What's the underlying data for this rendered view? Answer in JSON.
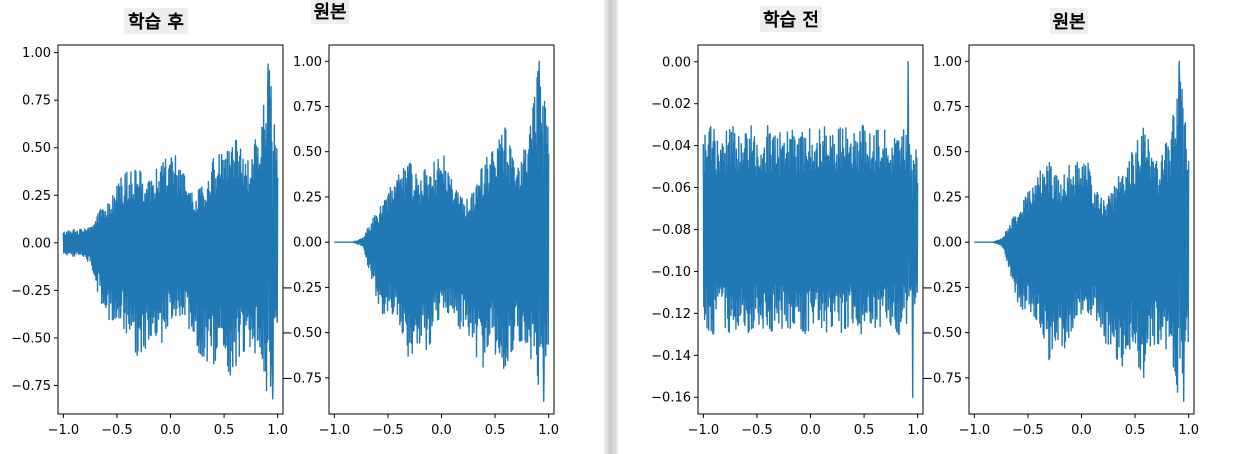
{
  "colors": {
    "line": "#1f77b4",
    "axis": "#000000",
    "background": "#ffffff"
  },
  "chart_data": [
    {
      "type": "line",
      "title": "학습 후",
      "xlabel": "",
      "ylabel": "",
      "xlim": [
        -1.05,
        1.05
      ],
      "ylim": [
        -0.9,
        1.04
      ],
      "xticks": [
        -1.0,
        -0.5,
        0.0,
        0.5,
        1.0
      ],
      "xtick_labels": [
        "−1.0",
        "−0.5",
        "0.0",
        "0.5",
        "1.0"
      ],
      "yticks": [
        1.0,
        0.75,
        0.5,
        0.25,
        0.0,
        -0.25,
        -0.5,
        -0.75
      ],
      "ytick_labels": [
        "1.00",
        "0.75",
        "0.50",
        "0.25",
        "0.00",
        "−0.25",
        "−0.50",
        "−0.75"
      ],
      "grid": false,
      "series": [
        {
          "x_range": [
            -1.0,
            1.0
          ],
          "envelope_upper": [
            0.06,
            0.07,
            0.07,
            0.08,
            0.18,
            0.22,
            0.33,
            0.38,
            0.4,
            0.3,
            0.42,
            0.44,
            0.48,
            0.35,
            0.25,
            0.3,
            0.44,
            0.48,
            0.62,
            0.5,
            0.45,
            0.6,
            0.95,
            0.55
          ],
          "envelope_lower": [
            -0.06,
            -0.07,
            -0.07,
            -0.12,
            -0.32,
            -0.42,
            -0.4,
            -0.5,
            -0.6,
            -0.55,
            -0.62,
            -0.45,
            -0.38,
            -0.42,
            -0.55,
            -0.6,
            -0.65,
            -0.55,
            -0.72,
            -0.58,
            -0.55,
            -0.6,
            -0.82,
            -0.55
          ],
          "peak_max": 0.94,
          "peak_min": -0.82
        }
      ]
    },
    {
      "type": "line",
      "title": "원본",
      "xlabel": "",
      "ylabel": "",
      "xlim": [
        -1.05,
        1.05
      ],
      "ylim": [
        -0.95,
        1.09
      ],
      "xticks": [
        -1.0,
        -0.5,
        0.0,
        0.5,
        1.0
      ],
      "xtick_labels": [
        "−1.0",
        "−0.5",
        "0.0",
        "0.5",
        "1.0"
      ],
      "yticks": [
        1.0,
        0.75,
        0.5,
        0.25,
        0.0,
        -0.25,
        -0.5,
        -0.75
      ],
      "ytick_labels": [
        "1.00",
        "0.75",
        "0.50",
        "0.25",
        "0.00",
        "−0.25",
        "−0.50",
        "−0.75"
      ],
      "grid": false,
      "series": [
        {
          "x_range": [
            -1.0,
            1.0
          ],
          "envelope_upper": [
            0.0,
            0.0,
            0.0,
            0.02,
            0.12,
            0.2,
            0.3,
            0.4,
            0.45,
            0.35,
            0.42,
            0.45,
            0.5,
            0.3,
            0.22,
            0.3,
            0.45,
            0.5,
            0.7,
            0.5,
            0.45,
            0.62,
            1.0,
            0.6
          ],
          "envelope_lower": [
            0.0,
            0.0,
            0.0,
            -0.02,
            -0.2,
            -0.4,
            -0.38,
            -0.45,
            -0.65,
            -0.55,
            -0.6,
            -0.45,
            -0.38,
            -0.42,
            -0.55,
            -0.62,
            -0.7,
            -0.55,
            -0.78,
            -0.6,
            -0.55,
            -0.62,
            -0.88,
            -0.55
          ],
          "peak_max": 1.0,
          "peak_min": -0.88
        }
      ]
    },
    {
      "type": "line",
      "title": "학습 전",
      "xlabel": "",
      "ylabel": "",
      "xlim": [
        -1.05,
        1.05
      ],
      "ylim": [
        -0.168,
        0.008
      ],
      "xticks": [
        -1.0,
        -0.5,
        0.0,
        0.5,
        1.0
      ],
      "xtick_labels": [
        "−1.0",
        "−0.5",
        "0.0",
        "0.5",
        "1.0"
      ],
      "yticks": [
        0.0,
        -0.02,
        -0.04,
        -0.06,
        -0.08,
        -0.1,
        -0.12,
        -0.14,
        -0.16
      ],
      "ytick_labels": [
        "0.00",
        "−0.02",
        "−0.04",
        "−0.06",
        "−0.08",
        "−0.10",
        "−0.12",
        "−0.14",
        "−0.16"
      ],
      "grid": false,
      "series": [
        {
          "x_range": [
            -1.0,
            1.0
          ],
          "center": -0.08,
          "envelope_upper": [
            -0.035,
            -0.03,
            -0.035,
            -0.03,
            -0.035,
            -0.03,
            -0.035,
            -0.03,
            -0.035,
            -0.03,
            -0.035,
            -0.03,
            -0.035,
            -0.03,
            -0.035,
            -0.03,
            -0.035,
            -0.03,
            -0.035,
            -0.03,
            -0.035,
            -0.03,
            -0.035,
            -0.04
          ],
          "envelope_lower": [
            -0.125,
            -0.13,
            -0.125,
            -0.13,
            -0.125,
            -0.13,
            -0.125,
            -0.13,
            -0.125,
            -0.13,
            -0.125,
            -0.13,
            -0.125,
            -0.13,
            -0.125,
            -0.13,
            -0.125,
            -0.13,
            -0.125,
            -0.13,
            -0.125,
            -0.13,
            -0.125,
            -0.12
          ],
          "peak_max": 0.0,
          "peak_min": -0.16
        }
      ]
    },
    {
      "type": "line",
      "title": "원본",
      "xlabel": "",
      "ylabel": "",
      "xlim": [
        -1.05,
        1.05
      ],
      "ylim": [
        -0.95,
        1.09
      ],
      "xticks": [
        -1.0,
        -0.5,
        0.0,
        0.5,
        1.0
      ],
      "xtick_labels": [
        "−1.0",
        "−0.5",
        "0.0",
        "0.5",
        "1.0"
      ],
      "yticks": [
        1.0,
        0.75,
        0.5,
        0.25,
        0.0,
        -0.25,
        -0.5,
        -0.75
      ],
      "ytick_labels": [
        "1.00",
        "0.75",
        "0.50",
        "0.25",
        "0.00",
        "−0.25",
        "−0.50",
        "−0.75"
      ],
      "grid": false,
      "series": [
        {
          "x_range": [
            -1.0,
            1.0
          ],
          "envelope_upper": [
            0.0,
            0.0,
            0.0,
            0.02,
            0.12,
            0.2,
            0.3,
            0.4,
            0.45,
            0.35,
            0.42,
            0.45,
            0.5,
            0.3,
            0.22,
            0.3,
            0.45,
            0.5,
            0.7,
            0.5,
            0.45,
            0.62,
            1.0,
            0.6
          ],
          "envelope_lower": [
            0.0,
            0.0,
            0.0,
            -0.02,
            -0.2,
            -0.4,
            -0.38,
            -0.45,
            -0.65,
            -0.55,
            -0.6,
            -0.45,
            -0.38,
            -0.42,
            -0.55,
            -0.62,
            -0.7,
            -0.55,
            -0.78,
            -0.6,
            -0.55,
            -0.62,
            -0.88,
            -0.55
          ],
          "peak_max": 1.0,
          "peak_min": -0.88
        }
      ]
    }
  ]
}
